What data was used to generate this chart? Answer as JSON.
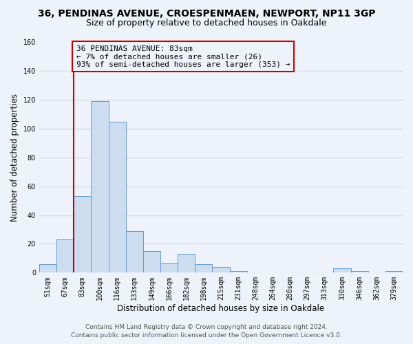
{
  "title": "36, PENDINAS AVENUE, CROESPENMAEN, NEWPORT, NP11 3GP",
  "subtitle": "Size of property relative to detached houses in Oakdale",
  "xlabel": "Distribution of detached houses by size in Oakdale",
  "ylabel": "Number of detached properties",
  "bin_labels": [
    "51sqm",
    "67sqm",
    "83sqm",
    "100sqm",
    "116sqm",
    "133sqm",
    "149sqm",
    "166sqm",
    "182sqm",
    "198sqm",
    "215sqm",
    "231sqm",
    "248sqm",
    "264sqm",
    "280sqm",
    "297sqm",
    "313sqm",
    "330sqm",
    "346sqm",
    "362sqm",
    "379sqm"
  ],
  "bar_heights": [
    6,
    23,
    53,
    119,
    105,
    29,
    15,
    7,
    13,
    6,
    4,
    1,
    0,
    0,
    0,
    0,
    0,
    3,
    1,
    0,
    1
  ],
  "bar_color": "#ccddf0",
  "bar_edge_color": "#6699cc",
  "vline_x_index": 2,
  "vline_color": "#cc0000",
  "annotation_text": "36 PENDINAS AVENUE: 83sqm\n← 7% of detached houses are smaller (26)\n93% of semi-detached houses are larger (353) →",
  "annotation_box_edge_color": "#cc0000",
  "ylim": [
    0,
    160
  ],
  "yticks": [
    0,
    20,
    40,
    60,
    80,
    100,
    120,
    140,
    160
  ],
  "footer_line1": "Contains HM Land Registry data © Crown copyright and database right 2024.",
  "footer_line2": "Contains public sector information licensed under the Open Government Licence v3.0.",
  "background_color": "#eef2fa",
  "grid_color": "#d8e0ef",
  "title_fontsize": 10,
  "subtitle_fontsize": 9,
  "axis_label_fontsize": 8.5,
  "tick_fontsize": 7,
  "annotation_fontsize": 8,
  "footer_fontsize": 6.5
}
